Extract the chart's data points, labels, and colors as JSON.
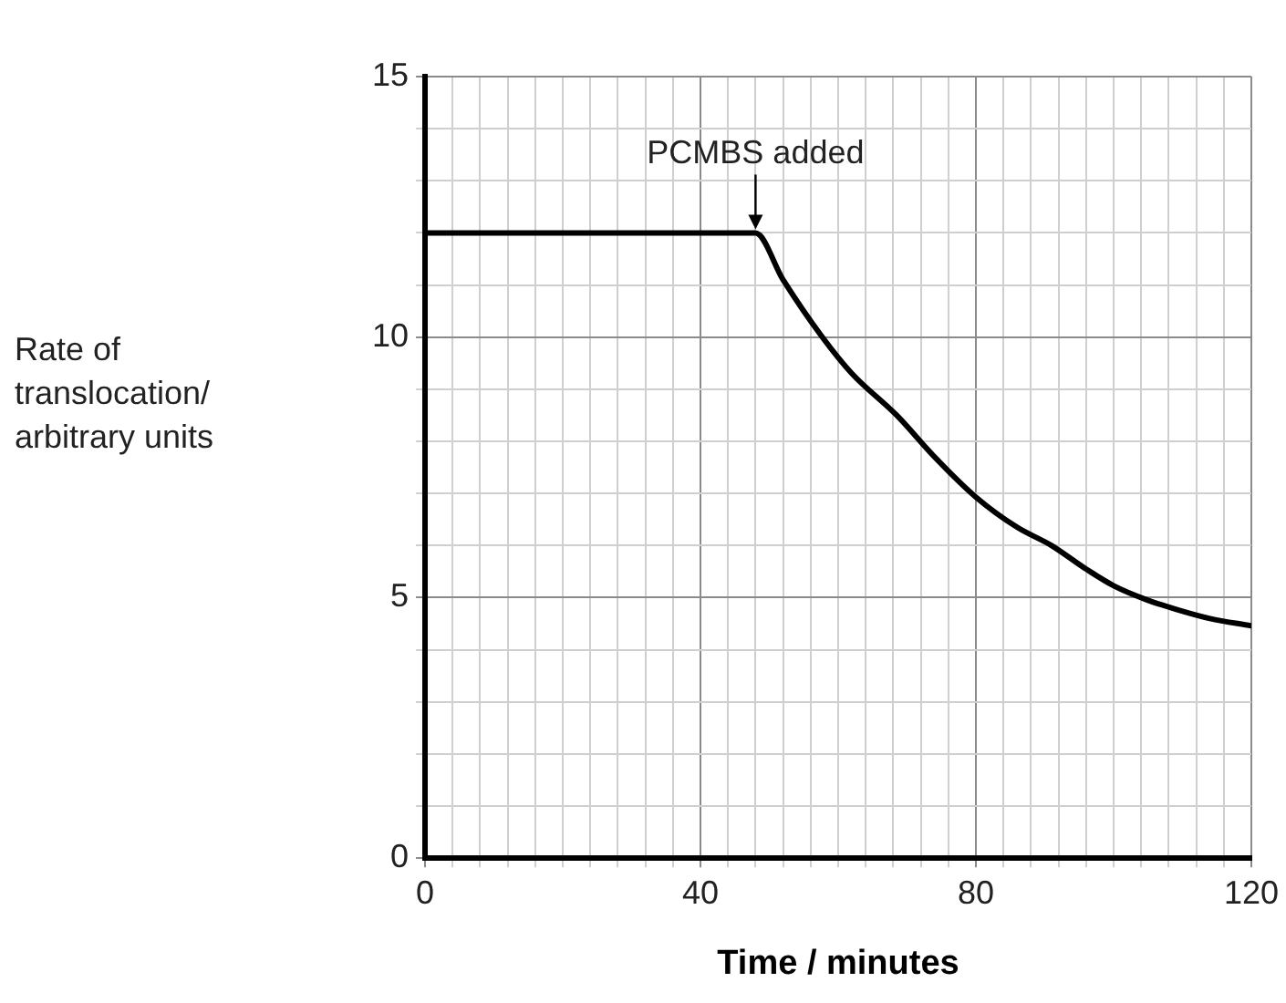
{
  "chart_data": {
    "type": "line",
    "xlabel": "Time / minutes",
    "ylabel": "Rate of translocation/ arbitrary units",
    "series": [
      {
        "color": "#000000",
        "x": [
          0,
          48,
          52,
          57.7,
          62,
          68.5,
          74,
          80,
          86,
          91,
          96,
          100,
          105,
          109,
          114,
          120
        ],
        "values": [
          12,
          12,
          11.1,
          10,
          9.3,
          8.5,
          7.7,
          6.93,
          6.35,
          6,
          5.55,
          5.23,
          4.95,
          4.78,
          4.6,
          4.46
        ]
      }
    ],
    "xlim": [
      0,
      120
    ],
    "ylim": [
      0,
      15
    ],
    "xticks": [
      0,
      {
        "value": 4,
        "label": null
      },
      {
        "value": 8,
        "label": null
      },
      {
        "value": 12,
        "label": null
      },
      {
        "value": 16,
        "label": null
      },
      {
        "value": 20,
        "label": null
      },
      {
        "value": 24,
        "label": null
      },
      {
        "value": 28,
        "label": null
      },
      {
        "value": 32,
        "label": null
      },
      {
        "value": 36,
        "label": null
      },
      40,
      {
        "value": 44,
        "label": null
      },
      {
        "value": 48,
        "label": null
      },
      {
        "value": 52,
        "label": null
      },
      {
        "value": 56,
        "label": null
      },
      {
        "value": 60,
        "label": null
      },
      {
        "value": 64,
        "label": null
      },
      {
        "value": 68,
        "label": null
      },
      {
        "value": 72,
        "label": null
      },
      {
        "value": 76,
        "label": null
      },
      80,
      {
        "value": 84,
        "label": null
      },
      {
        "value": 88,
        "label": null
      },
      {
        "value": 92,
        "label": null
      },
      {
        "value": 96,
        "label": null
      },
      {
        "value": 100,
        "label": null
      },
      {
        "value": 104,
        "label": null
      },
      {
        "value": 108,
        "label": null
      },
      {
        "value": 112,
        "label": null
      },
      {
        "value": 116,
        "label": null
      },
      120
    ],
    "yticks": [
      0,
      {
        "value": 1,
        "label": null
      },
      {
        "value": 2,
        "label": null
      },
      {
        "value": 3,
        "label": null
      },
      {
        "value": 4,
        "label": null
      },
      5,
      {
        "value": 6,
        "label": null
      },
      {
        "value": 7,
        "label": null
      },
      {
        "value": 8,
        "label": null
      },
      {
        "value": 9,
        "label": null
      },
      10,
      {
        "value": 11,
        "label": null
      },
      {
        "value": 12,
        "label": null
      },
      {
        "value": 13,
        "label": null
      },
      {
        "value": 14,
        "label": null
      },
      15
    ],
    "annotations": [
      {
        "text": "PCMBS added",
        "x": 48,
        "y": 12
      }
    ],
    "grid": true,
    "legend": false,
    "marker": "none",
    "line_style": "solid"
  }
}
